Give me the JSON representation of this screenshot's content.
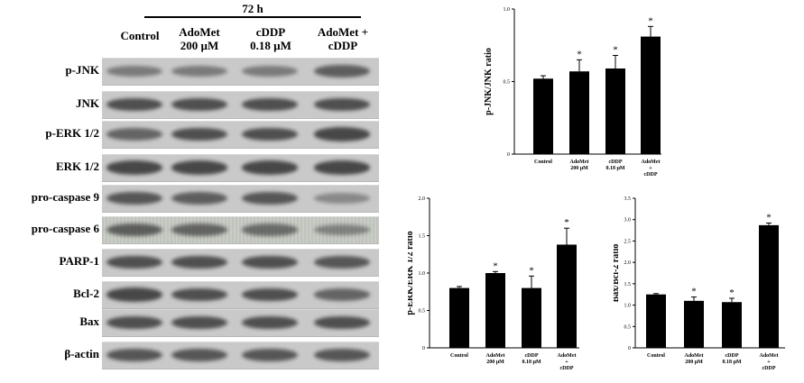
{
  "blot": {
    "time_label": "72 h",
    "columns": [
      {
        "line1": "Control",
        "line2": ""
      },
      {
        "line1": "AdoMet",
        "line2": "200 µM"
      },
      {
        "line1": "cDDP",
        "line2": "0.18 µM"
      },
      {
        "line1": "AdoMet +",
        "line2": "cDDP"
      }
    ],
    "rows": [
      "p-JNK",
      "JNK",
      "p-ERK 1/2",
      "ERK 1/2",
      "pro-caspase 9",
      "pro-caspase 6",
      "PARP-1",
      "Bcl-2",
      "Bax",
      "β-actin"
    ],
    "band_intensity": [
      [
        0.55,
        0.55,
        0.55,
        0.75
      ],
      [
        0.85,
        0.85,
        0.85,
        0.85
      ],
      [
        0.7,
        0.85,
        0.85,
        0.9
      ],
      [
        0.9,
        0.9,
        0.9,
        0.9
      ],
      [
        0.8,
        0.75,
        0.8,
        0.45
      ],
      [
        0.75,
        0.7,
        0.65,
        0.5
      ],
      [
        0.85,
        0.85,
        0.85,
        0.8
      ],
      [
        0.9,
        0.85,
        0.85,
        0.7
      ],
      [
        0.85,
        0.85,
        0.85,
        0.85
      ],
      [
        0.8,
        0.8,
        0.8,
        0.8
      ]
    ]
  },
  "chart_data": [
    {
      "type": "bar",
      "categories": [
        {
          "lines": [
            "Control"
          ]
        },
        {
          "lines": [
            "AdoMet",
            "200 µM"
          ]
        },
        {
          "lines": [
            "cDDP",
            "0.18 µM"
          ]
        },
        {
          "lines": [
            "AdoMet",
            "+",
            "cDDP"
          ]
        }
      ],
      "values": [
        0.52,
        0.57,
        0.59,
        0.81
      ],
      "errors": [
        0.02,
        0.08,
        0.09,
        0.07
      ],
      "significance": [
        "",
        "*",
        "*",
        "*"
      ],
      "ylabel": "p-JNK/JNK ratio",
      "ylim": [
        0,
        1.0
      ],
      "yticks": [
        0,
        0.5,
        1.0
      ],
      "ytick_labels": [
        "0",
        "0.5",
        "1.0"
      ],
      "color": "#000000"
    },
    {
      "type": "bar",
      "categories": [
        {
          "lines": [
            "Control"
          ]
        },
        {
          "lines": [
            "AdoMet",
            "200 µM"
          ]
        },
        {
          "lines": [
            "cDDP",
            "0.18 µM"
          ]
        },
        {
          "lines": [
            "AdoMet",
            "+",
            "cDDP"
          ]
        }
      ],
      "values": [
        0.8,
        1.0,
        0.8,
        1.38
      ],
      "errors": [
        0.02,
        0.02,
        0.16,
        0.22
      ],
      "significance": [
        "",
        "*",
        "*",
        "*"
      ],
      "ylabel": "p-ERK/ERK 1/2 ratio",
      "ylim": [
        0,
        2.0
      ],
      "yticks": [
        0,
        0.5,
        1.0,
        1.5,
        2.0
      ],
      "ytick_labels": [
        "0",
        "0.5",
        "1.0",
        "1.5",
        "2.0"
      ],
      "color": "#000000"
    },
    {
      "type": "bar",
      "categories": [
        {
          "lines": [
            "Control"
          ]
        },
        {
          "lines": [
            "AdoMet",
            "200 µM"
          ]
        },
        {
          "lines": [
            "cDDP",
            "0.18 µM"
          ]
        },
        {
          "lines": [
            "AdoMet",
            "+",
            "cDDP"
          ]
        }
      ],
      "values": [
        1.25,
        1.1,
        1.07,
        2.87
      ],
      "errors": [
        0.02,
        0.09,
        0.09,
        0.05
      ],
      "significance": [
        "",
        "*",
        "*",
        "*"
      ],
      "ylabel": "Bax/Bcl-2 ratio",
      "ylim": [
        0,
        3.5
      ],
      "yticks": [
        0,
        0.5,
        1.0,
        1.5,
        2.0,
        2.5,
        3.0,
        3.5
      ],
      "ytick_labels": [
        "0",
        "0.5",
        "1.0",
        "1.5",
        "2.0",
        "2.5",
        "3.0",
        "3.5"
      ],
      "color": "#000000"
    }
  ]
}
